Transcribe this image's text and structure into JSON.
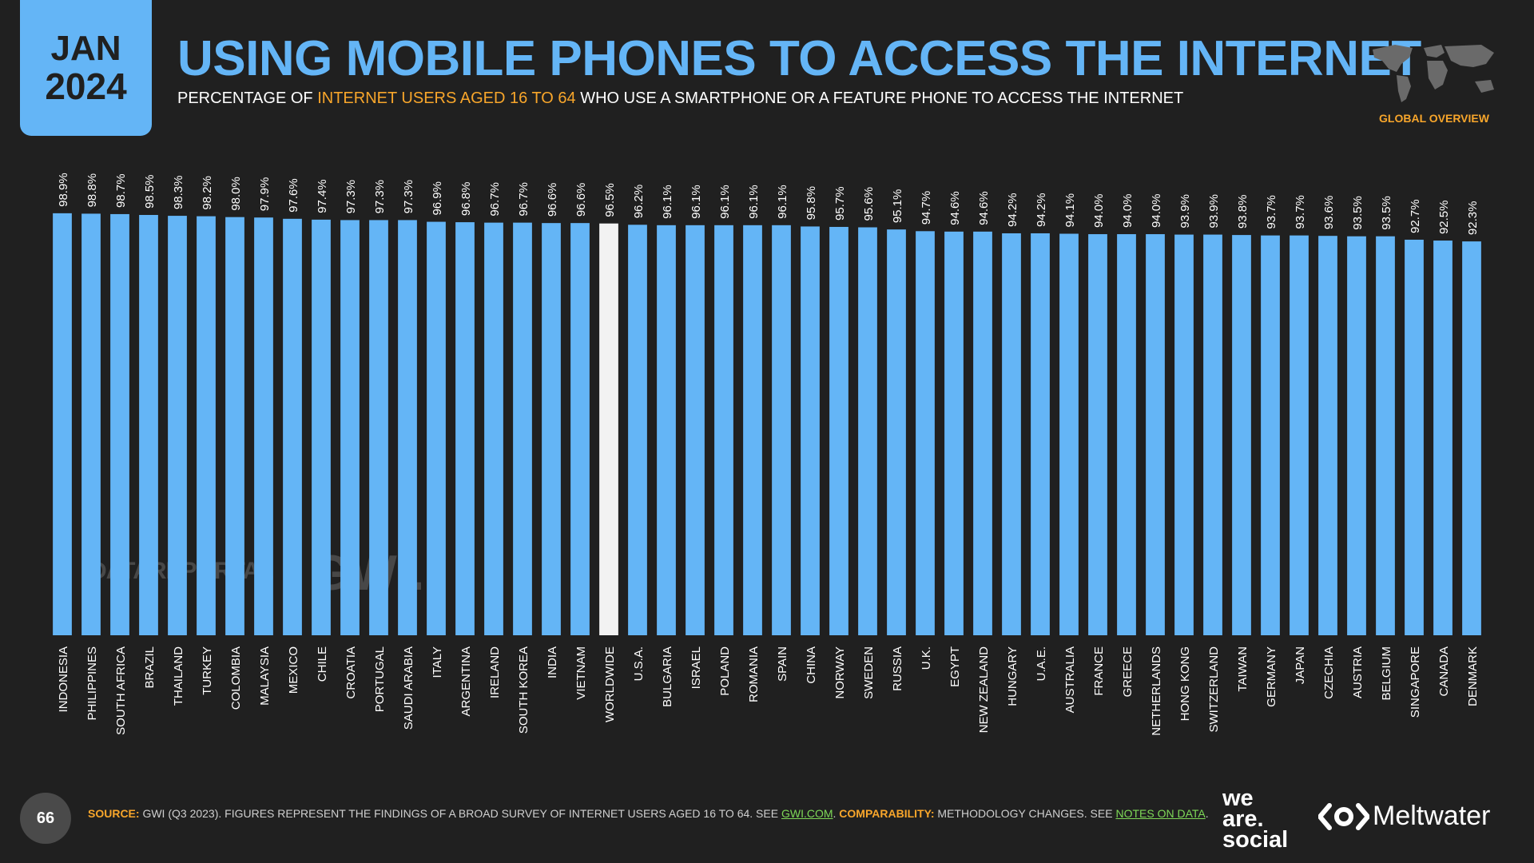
{
  "header": {
    "month": "JAN",
    "year": "2024",
    "title": "USING MOBILE PHONES TO ACCESS THE INTERNET",
    "subtitle_pre": "PERCENTAGE OF ",
    "subtitle_highlight": "INTERNET USERS AGED 16 TO 64",
    "subtitle_post": " WHO USE A SMARTPHONE OR A FEATURE PHONE TO ACCESS THE INTERNET",
    "global_overview": "GLOBAL OVERVIEW",
    "map_icon": "world-map-icon"
  },
  "watermarks": {
    "datareportal": "DATAREPORTAL",
    "gwi": "GWI."
  },
  "chart_data": {
    "type": "bar",
    "categories": [
      "INDONESIA",
      "PHILIPPINES",
      "SOUTH AFRICA",
      "BRAZIL",
      "THAILAND",
      "TURKEY",
      "COLOMBIA",
      "MALAYSIA",
      "MEXICO",
      "CHILE",
      "CROATIA",
      "PORTUGAL",
      "SAUDI ARABIA",
      "ITALY",
      "ARGENTINA",
      "IRELAND",
      "SOUTH KOREA",
      "INDIA",
      "VIETNAM",
      "WORLDWIDE",
      "U.S.A.",
      "BULGARIA",
      "ISRAEL",
      "POLAND",
      "ROMANIA",
      "SPAIN",
      "CHINA",
      "NORWAY",
      "SWEDEN",
      "RUSSIA",
      "U.K.",
      "EGYPT",
      "NEW ZEALAND",
      "HUNGARY",
      "U.A.E.",
      "AUSTRALIA",
      "FRANCE",
      "GREECE",
      "NETHERLANDS",
      "HONG KONG",
      "SWITZERLAND",
      "TAIWAN",
      "GERMANY",
      "JAPAN",
      "CZECHIA",
      "AUSTRIA",
      "BELGIUM",
      "SINGAPORE",
      "CANADA",
      "DENMARK"
    ],
    "values": [
      98.9,
      98.8,
      98.7,
      98.5,
      98.3,
      98.2,
      98.0,
      97.9,
      97.6,
      97.4,
      97.3,
      97.3,
      97.3,
      96.9,
      96.8,
      96.7,
      96.7,
      96.6,
      96.6,
      96.5,
      96.2,
      96.1,
      96.1,
      96.1,
      96.1,
      96.1,
      95.8,
      95.7,
      95.6,
      95.1,
      94.7,
      94.6,
      94.6,
      94.2,
      94.2,
      94.1,
      94.0,
      94.0,
      94.0,
      93.9,
      93.9,
      93.8,
      93.7,
      93.7,
      93.6,
      93.5,
      93.5,
      92.7,
      92.5,
      92.3
    ],
    "value_labels": [
      "98.9%",
      "98.8%",
      "98.7%",
      "98.5%",
      "98.3%",
      "98.2%",
      "98.0%",
      "97.9%",
      "97.6%",
      "97.4%",
      "97.3%",
      "97.3%",
      "97.3%",
      "96.9%",
      "96.8%",
      "96.7%",
      "96.7%",
      "96.6%",
      "96.6%",
      "96.5%",
      "96.2%",
      "96.1%",
      "96.1%",
      "96.1%",
      "96.1%",
      "96.1%",
      "95.8%",
      "95.7%",
      "95.6%",
      "95.1%",
      "94.7%",
      "94.6%",
      "94.6%",
      "94.2%",
      "94.2%",
      "94.1%",
      "94.0%",
      "94.0%",
      "94.0%",
      "93.9%",
      "93.9%",
      "93.8%",
      "93.7%",
      "93.7%",
      "93.6%",
      "93.5%",
      "93.5%",
      "92.7%",
      "92.5%",
      "92.3%"
    ],
    "highlight_category": "WORLDWIDE",
    "ylim": [
      0,
      100
    ],
    "grid": false,
    "colors": {
      "bar": "#64b5f6",
      "highlight": "#f2f2f2"
    }
  },
  "footer": {
    "page_number": "66",
    "source_label": "SOURCE:",
    "source_text": " GWI (Q3 2023). FIGURES REPRESENT THE FINDINGS OF A BROAD SURVEY OF INTERNET USERS AGED 16 TO 64. SEE ",
    "source_link": "GWI.COM",
    "source_end": ". ",
    "comparability_label": "COMPARABILITY:",
    "comparability_text": " METHODOLOGY CHANGES. SEE ",
    "comparability_link": "NOTES ON DATA",
    "comparability_end": ".",
    "brand1_line1": "we",
    "brand1_line2": "are.",
    "brand1_line3": "social",
    "brand2": "Meltwater"
  }
}
